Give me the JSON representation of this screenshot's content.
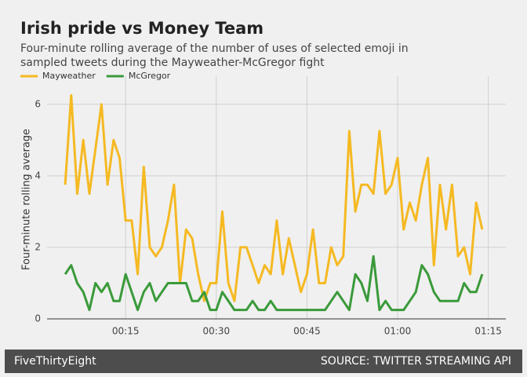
{
  "chart_data": {
    "type": "line",
    "title": "Irish pride vs Money Team",
    "subtitle": [
      "Four-minute rolling average of the number of uses of selected emoji in",
      "sampled tweets during the Mayweather-McGregor fight"
    ],
    "ylabel": "Four-minute rolling average",
    "footer_left": "FiveThirtyEight",
    "footer_right": "SOURCE: TWITTER STREAMING API",
    "x": [
      5,
      6,
      7,
      8,
      9,
      10,
      11,
      12,
      13,
      14,
      15,
      16,
      17,
      18,
      19,
      20,
      21,
      22,
      23,
      24,
      25,
      26,
      27,
      28,
      29,
      30,
      31,
      32,
      33,
      34,
      35,
      36,
      37,
      38,
      39,
      40,
      41,
      42,
      43,
      44,
      45,
      46,
      47,
      48,
      49,
      50,
      51,
      52,
      53,
      54,
      55,
      56,
      57,
      58,
      59,
      60,
      61,
      62,
      63,
      64,
      65,
      66,
      67,
      68,
      69,
      70,
      71,
      72,
      73,
      74
    ],
    "series": [
      {
        "name": "Mayweather",
        "color": "#f5b922",
        "values": [
          3.75,
          6.25,
          3.5,
          5,
          3.5,
          4.75,
          6,
          3.75,
          5,
          4.5,
          2.75,
          2.75,
          1.25,
          4.25,
          2,
          1.75,
          2,
          2.75,
          3.75,
          1,
          2.5,
          2.25,
          1.25,
          0.5,
          1,
          1,
          3,
          1,
          0.5,
          2,
          2,
          1.5,
          1,
          1.5,
          1.25,
          2.75,
          1.25,
          2.25,
          1.5,
          0.75,
          1.25,
          2.5,
          1,
          1,
          2,
          1.5,
          1.75,
          5.25,
          3,
          3.75,
          3.75,
          3.5,
          5.25,
          3.5,
          3.75,
          4.5,
          2.5,
          3.25,
          2.75,
          3.75,
          4.5,
          1.5,
          3.75,
          2.5,
          3.75,
          1.75,
          2,
          1.25,
          3.25,
          2.5
        ]
      },
      {
        "name": "McGregor",
        "color": "#3a9a3a",
        "values": [
          1.25,
          1.5,
          1,
          0.75,
          0.25,
          1,
          0.75,
          1,
          0.5,
          0.5,
          1.25,
          0.75,
          0.25,
          0.75,
          1,
          0.5,
          0.75,
          1,
          1,
          1,
          1,
          0.5,
          0.5,
          0.75,
          0.25,
          0.25,
          0.75,
          0.5,
          0.25,
          0.25,
          0.25,
          0.5,
          0.25,
          0.25,
          0.5,
          0.25,
          0.25,
          0.25,
          0.25,
          0.25,
          0.25,
          0.25,
          0.25,
          0.25,
          0.5,
          0.75,
          0.5,
          0.25,
          1.25,
          1,
          0.5,
          1.75,
          0.25,
          0.5,
          0.25,
          0.25,
          0.25,
          0.5,
          0.75,
          1.5,
          1.25,
          0.75,
          0.5,
          0.5,
          0.5,
          0.5,
          1,
          0.75,
          0.75,
          1.25
        ]
      }
    ],
    "xlim": [
      2,
      77.9
    ],
    "xticks": [
      {
        "value": 15,
        "label": "00:15"
      },
      {
        "value": 30,
        "label": "00:30"
      },
      {
        "value": 45,
        "label": "00:45"
      },
      {
        "value": 60,
        "label": "01:00"
      },
      {
        "value": 75,
        "label": "01:15"
      }
    ],
    "ylim": [
      0,
      6.5
    ],
    "yticks": [
      0,
      2,
      4,
      6
    ],
    "grid": true,
    "legend": "top-left"
  }
}
